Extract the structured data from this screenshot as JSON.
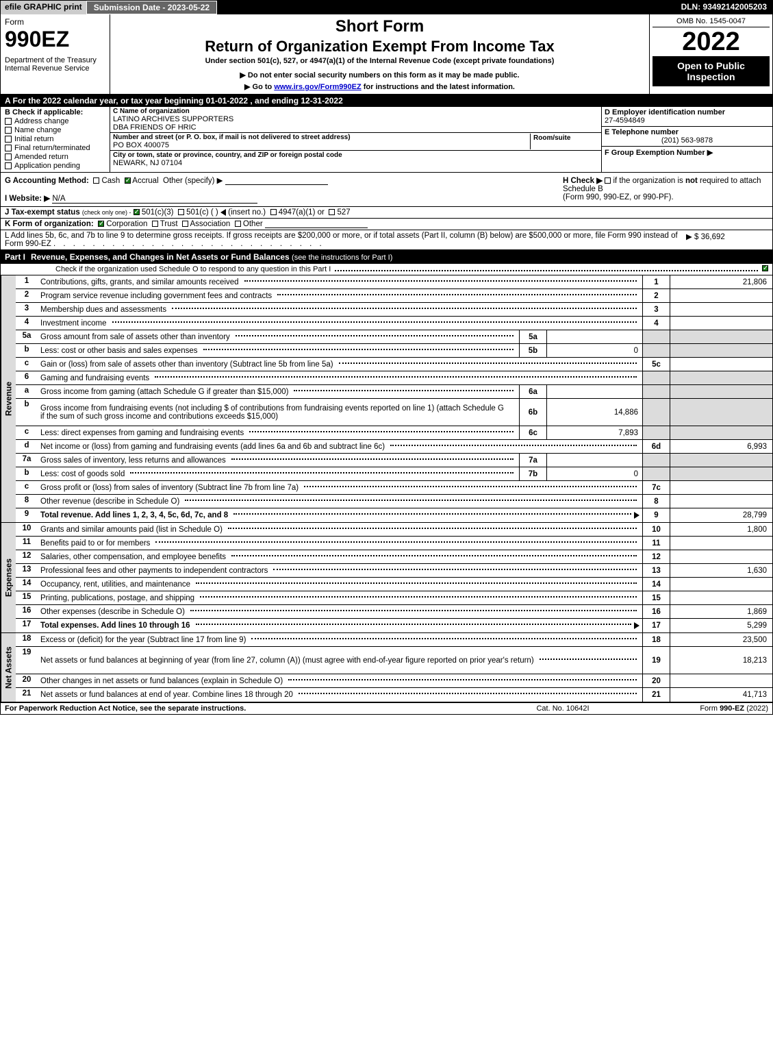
{
  "topbar": {
    "efile": "efile GRAPHIC print",
    "submission": "Submission Date - 2023-05-22",
    "dln": "DLN: 93492142005203"
  },
  "header": {
    "form_word": "Form",
    "form_number": "990EZ",
    "dept": "Department of the Treasury\nInternal Revenue Service",
    "short_form": "Short Form",
    "main_title": "Return of Organization Exempt From Income Tax",
    "sub1": "Under section 501(c), 527, or 4947(a)(1) of the Internal Revenue Code (except private foundations)",
    "sub2": "▶ Do not enter social security numbers on this form as it may be made public.",
    "sub3_pre": "▶ Go to ",
    "sub3_link": "www.irs.gov/Form990EZ",
    "sub3_post": " for instructions and the latest information.",
    "omb": "OMB No. 1545-0047",
    "year": "2022",
    "open": "Open to Public Inspection"
  },
  "row_a": "A  For the 2022 calendar year, or tax year beginning 01-01-2022 , and ending 12-31-2022",
  "col_b": {
    "hdr": "B  Check if applicable:",
    "items": [
      "Address change",
      "Name change",
      "Initial return",
      "Final return/terminated",
      "Amended return",
      "Application pending"
    ]
  },
  "col_c": {
    "name_label": "C Name of organization",
    "name": "LATINO ARCHIVES SUPPORTERS",
    "dba": "DBA FRIENDS OF HRIC",
    "street_label": "Number and street (or P. O. box, if mail is not delivered to street address)",
    "room_label": "Room/suite",
    "street": "PO BOX 400075",
    "city_label": "City or town, state or province, country, and ZIP or foreign postal code",
    "city": "NEWARK, NJ  07104"
  },
  "col_de": {
    "d_label": "D Employer identification number",
    "d_val": "27-4594849",
    "e_label": "E Telephone number",
    "e_val": "(201) 563-9878",
    "f_label": "F Group Exemption Number  ▶"
  },
  "row_g": {
    "label": "G Accounting Method:",
    "cash": "Cash",
    "accrual": "Accrual",
    "other": "Other (specify) ▶"
  },
  "row_h": {
    "text": "H  Check ▶",
    "rest": "if the organization is not required to attach Schedule B",
    "rest2": "(Form 990, 990-EZ, or 990-PF)."
  },
  "row_i": {
    "label": "I Website: ▶",
    "val": "N/A"
  },
  "row_j": {
    "label": "J Tax-exempt status",
    "sub": "(check only one) -",
    "opt1": "501(c)(3)",
    "opt2": "501(c) (    ) ",
    "opt2b": "(insert no.)",
    "opt3": "4947(a)(1) or",
    "opt4": "527"
  },
  "row_k": {
    "label": "K Form of organization:",
    "opts": [
      "Corporation",
      "Trust",
      "Association",
      "Other"
    ]
  },
  "row_l": {
    "text": "L Add lines 5b, 6c, and 7b to line 9 to determine gross receipts. If gross receipts are $200,000 or more, or if total assets (Part II, column (B) below) are $500,000 or more, file Form 990 instead of Form 990-EZ",
    "amt": "▶ $ 36,692"
  },
  "part1": {
    "label": "Part I",
    "title": "Revenue, Expenses, and Changes in Net Assets or Fund Balances",
    "sub": "(see the instructions for Part I)",
    "sched_o": "Check if the organization used Schedule O to respond to any question in this Part I"
  },
  "revenue_lines": [
    {
      "num": "1",
      "desc": "Contributions, gifts, grants, and similar amounts received",
      "ref": "1",
      "amt": "21,806"
    },
    {
      "num": "2",
      "desc": "Program service revenue including government fees and contracts",
      "ref": "2",
      "amt": ""
    },
    {
      "num": "3",
      "desc": "Membership dues and assessments",
      "ref": "3",
      "amt": ""
    },
    {
      "num": "4",
      "desc": "Investment income",
      "ref": "4",
      "amt": ""
    },
    {
      "num": "5a",
      "desc": "Gross amount from sale of assets other than inventory",
      "sub": "5a",
      "subval": "",
      "shaded_right": true
    },
    {
      "num": "b",
      "desc": "Less: cost or other basis and sales expenses",
      "sub": "5b",
      "subval": "0",
      "shaded_right": true
    },
    {
      "num": "c",
      "desc": "Gain or (loss) from sale of assets other than inventory (Subtract line 5b from line 5a)",
      "ref": "5c",
      "amt": ""
    },
    {
      "num": "6",
      "desc": "Gaming and fundraising events",
      "shaded_right": true,
      "noref": true
    },
    {
      "num": "a",
      "desc": "Gross income from gaming (attach Schedule G if greater than $15,000)",
      "sub": "6a",
      "subval": "",
      "shaded_right": true
    },
    {
      "num": "b",
      "desc": "Gross income from fundraising events (not including $                    of contributions from fundraising events reported on line 1) (attach Schedule G if the sum of such gross income and contributions exceeds $15,000)",
      "sub": "6b",
      "subval": "14,886",
      "shaded_right": true,
      "tall": true
    },
    {
      "num": "c",
      "desc": "Less: direct expenses from gaming and fundraising events",
      "sub": "6c",
      "subval": "7,893",
      "shaded_right": true
    },
    {
      "num": "d",
      "desc": "Net income or (loss) from gaming and fundraising events (add lines 6a and 6b and subtract line 6c)",
      "ref": "6d",
      "amt": "6,993"
    },
    {
      "num": "7a",
      "desc": "Gross sales of inventory, less returns and allowances",
      "sub": "7a",
      "subval": "",
      "shaded_right": true
    },
    {
      "num": "b",
      "desc": "Less: cost of goods sold",
      "sub": "7b",
      "subval": "0",
      "shaded_right": true
    },
    {
      "num": "c",
      "desc": "Gross profit or (loss) from sales of inventory (Subtract line 7b from line 7a)",
      "ref": "7c",
      "amt": ""
    },
    {
      "num": "8",
      "desc": "Other revenue (describe in Schedule O)",
      "ref": "8",
      "amt": ""
    },
    {
      "num": "9",
      "desc": "Total revenue. Add lines 1, 2, 3, 4, 5c, 6d, 7c, and 8",
      "ref": "9",
      "amt": "28,799",
      "total": true,
      "arrow": true
    }
  ],
  "expense_lines": [
    {
      "num": "10",
      "desc": "Grants and similar amounts paid (list in Schedule O)",
      "ref": "10",
      "amt": "1,800"
    },
    {
      "num": "11",
      "desc": "Benefits paid to or for members",
      "ref": "11",
      "amt": ""
    },
    {
      "num": "12",
      "desc": "Salaries, other compensation, and employee benefits",
      "ref": "12",
      "amt": ""
    },
    {
      "num": "13",
      "desc": "Professional fees and other payments to independent contractors",
      "ref": "13",
      "amt": "1,630"
    },
    {
      "num": "14",
      "desc": "Occupancy, rent, utilities, and maintenance",
      "ref": "14",
      "amt": ""
    },
    {
      "num": "15",
      "desc": "Printing, publications, postage, and shipping",
      "ref": "15",
      "amt": ""
    },
    {
      "num": "16",
      "desc": "Other expenses (describe in Schedule O)",
      "ref": "16",
      "amt": "1,869"
    },
    {
      "num": "17",
      "desc": "Total expenses. Add lines 10 through 16",
      "ref": "17",
      "amt": "5,299",
      "total": true,
      "arrow": true
    }
  ],
  "netasset_lines": [
    {
      "num": "18",
      "desc": "Excess or (deficit) for the year (Subtract line 17 from line 9)",
      "ref": "18",
      "amt": "23,500"
    },
    {
      "num": "19",
      "desc": "Net assets or fund balances at beginning of year (from line 27, column (A)) (must agree with end-of-year figure reported on prior year's return)",
      "ref": "19",
      "amt": "18,213",
      "tall": true
    },
    {
      "num": "20",
      "desc": "Other changes in net assets or fund balances (explain in Schedule O)",
      "ref": "20",
      "amt": ""
    },
    {
      "num": "21",
      "desc": "Net assets or fund balances at end of year. Combine lines 18 through 20",
      "ref": "21",
      "amt": "41,713"
    }
  ],
  "section_labels": {
    "revenue": "Revenue",
    "expenses": "Expenses",
    "netassets": "Net Assets"
  },
  "footer": {
    "left": "For Paperwork Reduction Act Notice, see the separate instructions.",
    "mid": "Cat. No. 10642I",
    "right": "Form 990-EZ (2022)"
  },
  "colors": {
    "black": "#000000",
    "white": "#ffffff",
    "shaded": "#dcdcdc",
    "check_green": "#1a7a1a",
    "topbar_gray": "#666666",
    "efile_gray": "#cccccc",
    "link": "#0000cc"
  }
}
